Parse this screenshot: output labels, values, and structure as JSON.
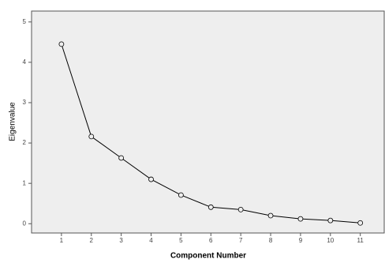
{
  "chart_data": {
    "type": "line",
    "x_label": "Component Number",
    "y_label": "Eigenvalue",
    "x": [
      1,
      2,
      3,
      4,
      5,
      6,
      7,
      8,
      9,
      10,
      11
    ],
    "values": [
      4.45,
      2.16,
      1.63,
      1.1,
      0.71,
      0.41,
      0.35,
      0.2,
      0.12,
      0.08,
      0.02
    ],
    "color": "#000000",
    "marker": "open-circle",
    "xlim": [
      0,
      11.8
    ],
    "xticks": [
      1,
      2,
      3,
      4,
      5,
      6,
      7,
      8,
      9,
      10,
      11
    ],
    "ylim": [
      -0.23,
      5.27
    ],
    "yticks": [
      0,
      1,
      2,
      3,
      4,
      5
    ],
    "grid": false
  }
}
